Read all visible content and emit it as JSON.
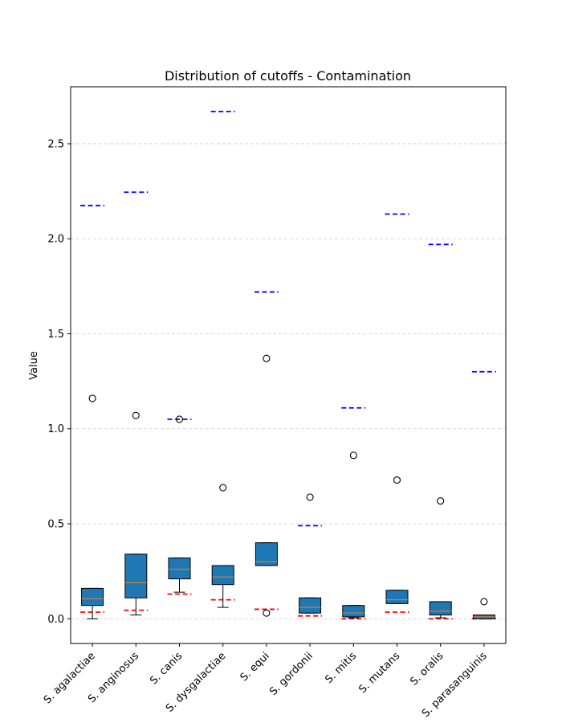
{
  "chart_data": {
    "type": "box",
    "title": "Distribution of cutoffs - Contamination",
    "xlabel": "",
    "ylabel": "Value",
    "ylim": [
      -0.13,
      2.8
    ],
    "yticks": [
      0.0,
      0.5,
      1.0,
      1.5,
      2.0,
      2.5
    ],
    "ytick_labels": [
      "0.0",
      "0.5",
      "1.0",
      "1.5",
      "2.0",
      "2.5"
    ],
    "grid": "horizontal dashed",
    "colors": {
      "box_fill": "#1f77b4",
      "median": "#ff7f0e",
      "upper_reference": "#0000ff",
      "lower_reference": "#ff0000",
      "grid": "#cccccc"
    },
    "categories": [
      "S. agalactiae",
      "S. anginosus",
      "S. canis",
      "S. dysgalactiae",
      "S. equi",
      "S. gordonii",
      "S. mitis",
      "S. mutans",
      "S. oralis",
      "S. parasanguinis"
    ],
    "boxes": [
      {
        "whislo": 0.0,
        "q1": 0.07,
        "med": 0.105,
        "q3": 0.16,
        "whishi": 0.16,
        "fliers": [
          1.16
        ]
      },
      {
        "whislo": 0.02,
        "q1": 0.11,
        "med": 0.19,
        "q3": 0.34,
        "whishi": 0.34,
        "fliers": [
          1.07
        ]
      },
      {
        "whislo": 0.14,
        "q1": 0.21,
        "med": 0.26,
        "q3": 0.32,
        "whishi": 0.32,
        "fliers": [
          1.05
        ]
      },
      {
        "whislo": 0.06,
        "q1": 0.18,
        "med": 0.22,
        "q3": 0.28,
        "whishi": 0.28,
        "fliers": [
          0.69
        ]
      },
      {
        "whislo": 0.28,
        "q1": 0.28,
        "med": 0.3,
        "q3": 0.4,
        "whishi": 0.4,
        "fliers": [
          1.37,
          0.03
        ]
      },
      {
        "whislo": 0.03,
        "q1": 0.03,
        "med": 0.06,
        "q3": 0.11,
        "whishi": 0.11,
        "fliers": [
          0.64
        ]
      },
      {
        "whislo": 0.005,
        "q1": 0.01,
        "med": 0.03,
        "q3": 0.07,
        "whishi": 0.07,
        "fliers": [
          0.86
        ]
      },
      {
        "whislo": 0.08,
        "q1": 0.08,
        "med": 0.1,
        "q3": 0.15,
        "whishi": 0.15,
        "fliers": [
          0.73
        ]
      },
      {
        "whislo": 0.005,
        "q1": 0.02,
        "med": 0.04,
        "q3": 0.09,
        "whishi": 0.09,
        "fliers": [
          0.62
        ]
      },
      {
        "whislo": 0.0,
        "q1": 0.0,
        "med": 0.01,
        "q3": 0.02,
        "whishi": 0.02,
        "fliers": [
          0.09
        ]
      }
    ],
    "upper_reference": [
      2.175,
      2.245,
      1.05,
      2.67,
      1.72,
      0.49,
      1.11,
      2.13,
      1.97,
      1.3
    ],
    "lower_reference": [
      0.035,
      0.045,
      0.13,
      0.1,
      0.05,
      0.015,
      0.0,
      0.035,
      0.0,
      0.0
    ]
  }
}
